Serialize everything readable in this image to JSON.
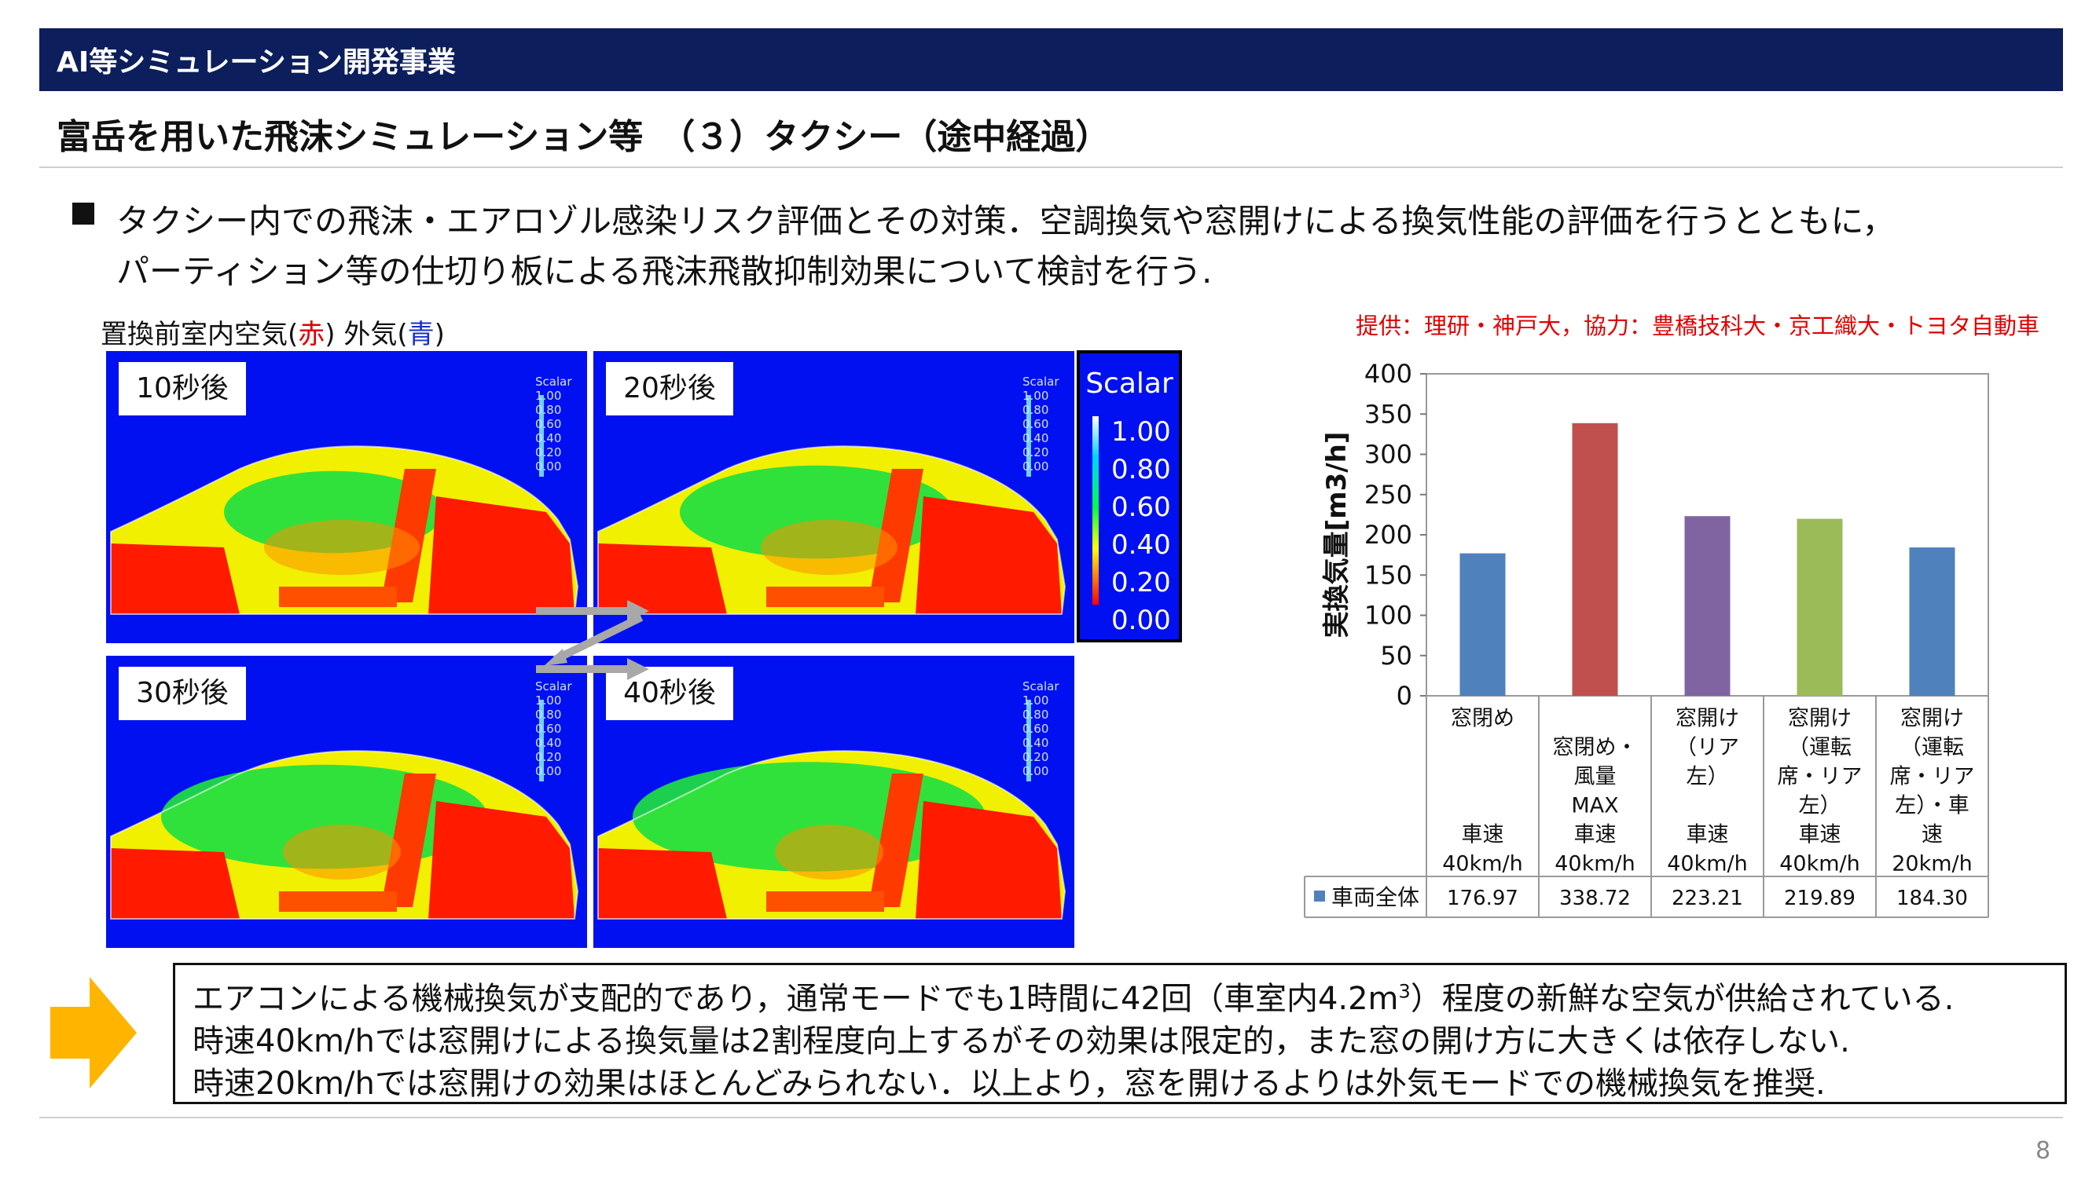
{
  "header": {
    "banner": "AI等シミュレーション開発事業",
    "title": "富岳を用いた飛沫シミュレーション等　（３）タクシー（途中経過）"
  },
  "intro": {
    "line1": "タクシー内での飛沫・エアロゾル感染リスク評価とその対策．空調換気や窓開けによる換気性能の評価を行うとともに，",
    "line2": "パーティション等の仕切り板による飛沫飛散抑制効果について検討を行う."
  },
  "simulation": {
    "caption_main": "置換前室内空気(",
    "caption_red": "赤",
    "caption_mid": ")  外気(",
    "caption_blue": "青",
    "caption_end": ")",
    "panels": [
      {
        "label": "10秒後",
        "green_level": 0.35
      },
      {
        "label": "20秒後",
        "green_level": 0.55
      },
      {
        "label": "30秒後",
        "green_level": 0.75
      },
      {
        "label": "40秒後",
        "green_level": 0.85
      }
    ],
    "mini_scale": {
      "title": "Scalar",
      "ticks": [
        "1.00",
        "0.80",
        "0.60",
        "0.40",
        "0.20",
        "0.00"
      ]
    },
    "scalar_legend": {
      "title": "Scalar",
      "ticks": [
        "1.00",
        "0.80",
        "0.60",
        "0.40",
        "0.20",
        "0.00"
      ]
    },
    "colors": {
      "outside": "#0010f0",
      "inside": "#ff1a00",
      "mix_yellow": "#f0f000",
      "mix_green": "#20e040"
    }
  },
  "credit": "提供：理研・神戸大，協力：豊橋技科大・京工織大・トヨタ自動車",
  "chart_data": {
    "type": "bar",
    "ylabel": "実換気量[m3/h]",
    "ylim": [
      0,
      400
    ],
    "yticks": [
      0,
      50,
      100,
      150,
      200,
      250,
      300,
      350,
      400
    ],
    "grid": false,
    "categories": [
      [
        "窓閉め",
        "",
        "",
        "",
        "車速",
        "40km/h"
      ],
      [
        "窓閉め・",
        "風量",
        "MAX",
        "車速",
        "40km/h"
      ],
      [
        "窓開け",
        "（リア",
        "左）",
        "",
        "車速",
        "40km/h"
      ],
      [
        "窓開け",
        "（運転",
        "席・リア",
        "左）",
        "車速",
        "40km/h"
      ],
      [
        "窓開け",
        "（運転",
        "席・リア",
        "左）・車",
        "速",
        "20km/h"
      ]
    ],
    "series": [
      {
        "name": "車両全体",
        "values": [
          176.97,
          338.72,
          223.21,
          219.89,
          184.3
        ],
        "value_labels": [
          "176.97",
          "338.72",
          "223.21",
          "219.89",
          "184.30"
        ]
      }
    ],
    "bar_colors": [
      "#4f81bd",
      "#c0504d",
      "#8064a2",
      "#9bbb59",
      "#4f81bd"
    ],
    "legend_swatch_color": "#4f81bd"
  },
  "conclusion": {
    "line1_a": "エアコンによる機械換気が支配的であり，通常モードでも1時間に42回（車室内4.2m",
    "line1_sup": "3",
    "line1_b": "）程度の新鮮な空気が供給されている.",
    "line2": "時速40km/hでは窓開けによる換気量は2割程度向上するがその効果は限定的，また窓の開け方に大きくは依存しない.",
    "line3": "時速20km/hでは窓開けの効果はほとんどみられない．以上より，窓を開けるよりは外気モードでの機械換気を推奨."
  },
  "arrow_color": "#ffb400",
  "page_number": "8"
}
